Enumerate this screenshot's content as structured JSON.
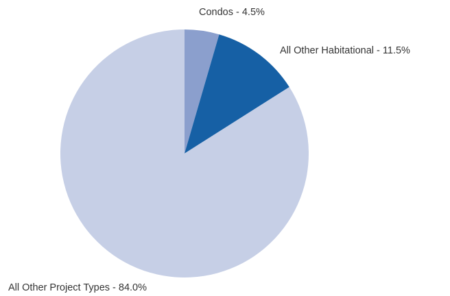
{
  "chart_data": {
    "type": "pie",
    "start_angle_deg": 0,
    "direction": "clockwise",
    "slices": [
      {
        "label": "Condos - 4.5%",
        "name": "Condos",
        "value": 4.5,
        "color": "#8b9fcd"
      },
      {
        "label": "All Other Habitational - 11.5%",
        "name": "All Other Habitational",
        "value": 11.5,
        "color": "#1660a5"
      },
      {
        "label": "All Other Project Types - 84.0%",
        "name": "All Other Project Types",
        "value": 84.0,
        "color": "#c6cfe6"
      }
    ]
  }
}
